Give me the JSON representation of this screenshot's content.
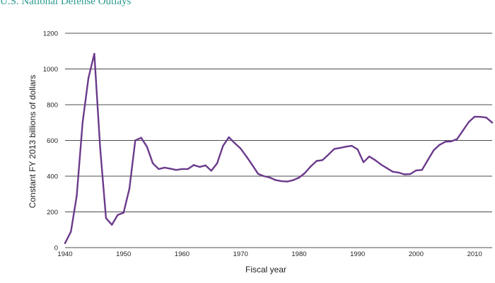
{
  "chart_data": {
    "type": "line",
    "title": "U.S. National Defense Outlays",
    "xlabel": "Fiscal year",
    "ylabel": "Constant FY 2013 billions of dollars",
    "xlim": [
      1940,
      2013
    ],
    "ylim": [
      0,
      1200
    ],
    "x_ticks": [
      "1940",
      "1950",
      "1960",
      "1970",
      "1980",
      "1990",
      "2000",
      "2010"
    ],
    "y_ticks": [
      "0",
      "200",
      "400",
      "600",
      "800",
      "1000",
      "1200"
    ],
    "grid": "horizontal",
    "legend": "none",
    "line_color": "#6b3a8c",
    "series": [
      {
        "x": [
          1940,
          1941,
          1942,
          1943,
          1944,
          1945,
          1946,
          1947,
          1948,
          1949,
          1950,
          1951,
          1952,
          1953,
          1954,
          1955,
          1956,
          1957,
          1958,
          1959,
          1960,
          1961,
          1962,
          1963,
          1964,
          1965,
          1966,
          1967,
          1968,
          1969,
          1970,
          1971,
          1972,
          1973,
          1974,
          1975,
          1976,
          1977,
          1978,
          1979,
          1980,
          1981,
          1982,
          1983,
          1984,
          1985,
          1986,
          1987,
          1988,
          1989,
          1990,
          1991,
          1992,
          1993,
          1994,
          1995,
          1996,
          1997,
          1998,
          1999,
          2000,
          2001,
          2002,
          2003,
          2004,
          2005,
          2006,
          2007,
          2008,
          2009,
          2010,
          2011,
          2012,
          2013
        ],
        "values": [
          25,
          90,
          290,
          700,
          950,
          1085,
          560,
          165,
          128,
          183,
          195,
          330,
          600,
          615,
          565,
          472,
          440,
          448,
          442,
          435,
          440,
          440,
          462,
          452,
          460,
          430,
          472,
          570,
          618,
          585,
          555,
          510,
          462,
          413,
          400,
          392,
          378,
          372,
          370,
          378,
          392,
          418,
          455,
          485,
          490,
          520,
          552,
          558,
          565,
          570,
          550,
          478,
          510,
          490,
          465,
          445,
          425,
          420,
          410,
          412,
          432,
          435,
          490,
          545,
          575,
          593,
          595,
          608,
          655,
          703,
          733,
          732,
          728,
          700
        ]
      }
    ]
  }
}
